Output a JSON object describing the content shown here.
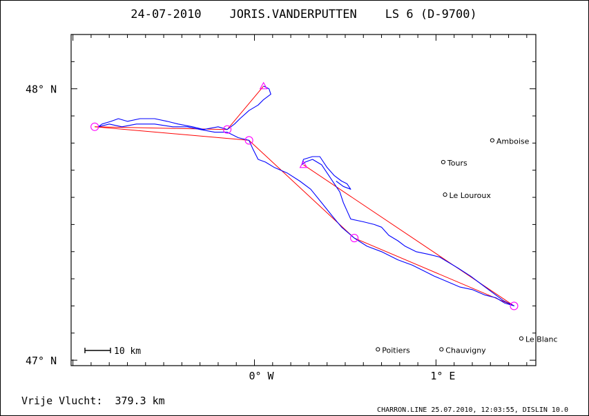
{
  "chart_data": {
    "type": "map-track",
    "title": "24-07-2010    JORIS.VANDERPUTTEN    LS 6 (D-9700)",
    "x_ticks": [
      {
        "value": 0.0,
        "label": "0° W"
      },
      {
        "value": 1.0,
        "label": "1° E"
      }
    ],
    "y_ticks": [
      {
        "value": 48.0,
        "label": "48° N"
      },
      {
        "value": 47.0,
        "label": "47° N"
      }
    ],
    "xlim": [
      -1.01,
      1.55
    ],
    "ylim": [
      46.98,
      48.2
    ],
    "towns": [
      {
        "name": "Amboise",
        "lon": 1.31,
        "lat": 47.81
      },
      {
        "name": "Tours",
        "lon": 1.04,
        "lat": 47.73
      },
      {
        "name": "Le Louroux",
        "lon": 1.05,
        "lat": 47.61
      },
      {
        "name": "Poitiers",
        "lon": 0.68,
        "lat": 47.04
      },
      {
        "name": "Chauvigny",
        "lon": 1.03,
        "lat": 47.04
      },
      {
        "name": "Le Blanc",
        "lon": 1.47,
        "lat": 47.08
      }
    ],
    "turnpoints": [
      {
        "lon": 0.05,
        "lat": 48.01,
        "marker": "triangle"
      },
      {
        "lon": -0.15,
        "lat": 47.85,
        "marker": "circle"
      },
      {
        "lon": -0.88,
        "lat": 47.86,
        "marker": "circle"
      },
      {
        "lon": -0.03,
        "lat": 47.81,
        "marker": "circle"
      },
      {
        "lon": 0.55,
        "lat": 47.45,
        "marker": "circle"
      },
      {
        "lon": 1.43,
        "lat": 47.2,
        "marker": "circle"
      },
      {
        "lon": 0.27,
        "lat": 47.72,
        "marker": "triangle"
      }
    ],
    "task_lines": [
      [
        [
          0.05,
          48.01
        ],
        [
          -0.15,
          47.85
        ]
      ],
      [
        [
          -0.88,
          47.86
        ],
        [
          -0.03,
          47.81
        ],
        [
          0.55,
          47.45
        ],
        [
          1.43,
          47.2
        ],
        [
          0.27,
          47.72
        ]
      ],
      [
        [
          -0.88,
          47.86
        ],
        [
          -0.15,
          47.85
        ]
      ]
    ],
    "track": [
      [
        0.05,
        48.01
      ],
      [
        0.08,
        48.0
      ],
      [
        0.09,
        47.98
      ],
      [
        0.05,
        47.96
      ],
      [
        0.02,
        47.94
      ],
      [
        -0.03,
        47.92
      ],
      [
        -0.08,
        47.89
      ],
      [
        -0.11,
        47.87
      ],
      [
        -0.15,
        47.85
      ],
      [
        -0.2,
        47.86
      ],
      [
        -0.28,
        47.85
      ],
      [
        -0.34,
        47.86
      ],
      [
        -0.42,
        47.87
      ],
      [
        -0.48,
        47.88
      ],
      [
        -0.55,
        47.89
      ],
      [
        -0.63,
        47.89
      ],
      [
        -0.7,
        47.88
      ],
      [
        -0.75,
        47.89
      ],
      [
        -0.79,
        47.88
      ],
      [
        -0.84,
        47.87
      ],
      [
        -0.86,
        47.86
      ],
      [
        -0.8,
        47.87
      ],
      [
        -0.73,
        47.86
      ],
      [
        -0.65,
        47.87
      ],
      [
        -0.55,
        47.87
      ],
      [
        -0.45,
        47.86
      ],
      [
        -0.37,
        47.86
      ],
      [
        -0.3,
        47.85
      ],
      [
        -0.22,
        47.84
      ],
      [
        -0.15,
        47.84
      ],
      [
        -0.09,
        47.82
      ],
      [
        -0.03,
        47.81
      ],
      [
        -0.01,
        47.78
      ],
      [
        0.02,
        47.74
      ],
      [
        0.06,
        47.73
      ],
      [
        0.11,
        47.71
      ],
      [
        0.18,
        47.69
      ],
      [
        0.25,
        47.66
      ],
      [
        0.31,
        47.63
      ],
      [
        0.37,
        47.58
      ],
      [
        0.43,
        47.53
      ],
      [
        0.48,
        47.49
      ],
      [
        0.55,
        47.45
      ],
      [
        0.62,
        47.42
      ],
      [
        0.7,
        47.4
      ],
      [
        0.79,
        47.37
      ],
      [
        0.87,
        47.35
      ],
      [
        0.93,
        47.33
      ],
      [
        0.99,
        47.31
      ],
      [
        1.06,
        47.29
      ],
      [
        1.13,
        47.27
      ],
      [
        1.2,
        47.26
      ],
      [
        1.27,
        47.24
      ],
      [
        1.33,
        47.23
      ],
      [
        1.38,
        47.21
      ],
      [
        1.43,
        47.2
      ],
      [
        1.37,
        47.22
      ],
      [
        1.31,
        47.25
      ],
      [
        1.25,
        47.28
      ],
      [
        1.19,
        47.31
      ],
      [
        1.12,
        47.34
      ],
      [
        1.07,
        47.36
      ],
      [
        1.02,
        47.38
      ],
      [
        0.96,
        47.39
      ],
      [
        0.89,
        47.4
      ],
      [
        0.83,
        47.42
      ],
      [
        0.79,
        47.44
      ],
      [
        0.74,
        47.46
      ],
      [
        0.7,
        47.49
      ],
      [
        0.66,
        47.5
      ],
      [
        0.6,
        47.51
      ],
      [
        0.53,
        47.52
      ],
      [
        0.51,
        47.55
      ],
      [
        0.49,
        47.58
      ],
      [
        0.47,
        47.62
      ],
      [
        0.45,
        47.64
      ],
      [
        0.41,
        47.68
      ],
      [
        0.37,
        47.72
      ],
      [
        0.32,
        47.74
      ],
      [
        0.28,
        47.73
      ],
      [
        0.26,
        47.72
      ],
      [
        0.27,
        47.74
      ],
      [
        0.32,
        47.75
      ],
      [
        0.36,
        47.75
      ],
      [
        0.4,
        47.71
      ],
      [
        0.44,
        47.68
      ],
      [
        0.48,
        47.66
      ],
      [
        0.51,
        47.65
      ],
      [
        0.53,
        47.63
      ],
      [
        0.49,
        47.64
      ],
      [
        0.45,
        47.66
      ]
    ],
    "scale_bar_label": "10 km",
    "legend": "none"
  },
  "footer": {
    "free_flight": "Vrije Vlucht:  379.3 km",
    "credit": "CHARRON.LINE 25.07.2010, 12:03:55, DISLIN 10.0"
  },
  "colors": {
    "frame": "#000000",
    "track": "#0000ff",
    "task_line": "#ff0000",
    "turnpoint": "#ff00ff"
  }
}
